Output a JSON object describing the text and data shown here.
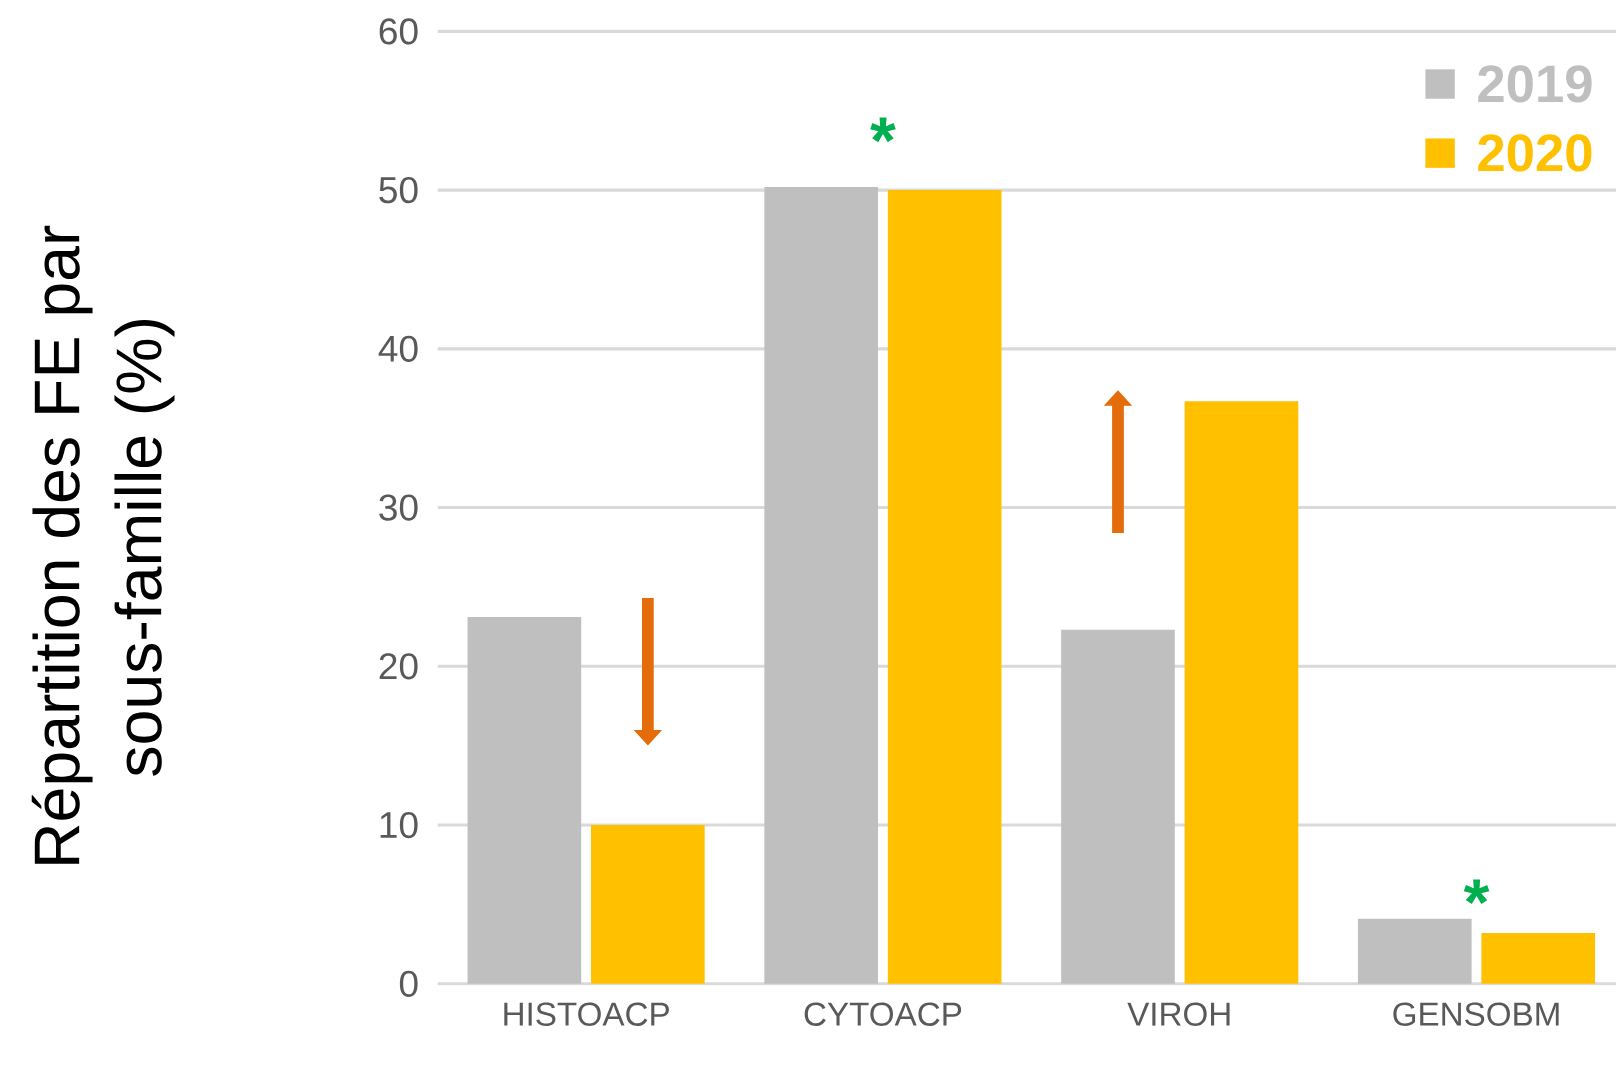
{
  "chart_data": {
    "type": "bar",
    "ylabel": "Répartition des FE par sous-famille (%)",
    "categories": [
      "HISTOACP",
      "CYTOACP",
      "VIROH",
      "GENSOBM"
    ],
    "series": [
      {
        "name": "2019",
        "color": "#bfbfbf",
        "values": [
          23.1,
          50.2,
          22.3,
          4.1
        ]
      },
      {
        "name": "2020",
        "color": "#ffc000",
        "values": [
          10.0,
          50.0,
          36.7,
          3.2
        ]
      }
    ],
    "ylim": [
      0,
      60
    ],
    "yticks": [
      0,
      10,
      20,
      30,
      40,
      50,
      60
    ],
    "grid": "y",
    "legend": "top right",
    "annotations": [
      "*",
      "*"
    ]
  }
}
